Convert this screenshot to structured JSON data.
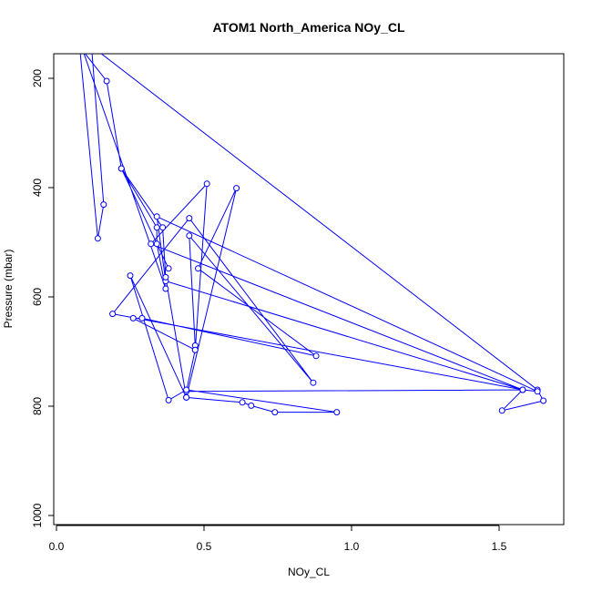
{
  "chart_data": {
    "type": "line",
    "title": "ATOM1 North_America NOy_CL",
    "xlabel": "NOy_CL",
    "ylabel": "Pressure (mbar)",
    "xlim": [
      0.0,
      1.7
    ],
    "ylim": [
      1000,
      150
    ],
    "y_reversed": true,
    "x_ticks": [
      "0.0",
      "0.5",
      "1.0",
      "1.5"
    ],
    "x_tick_values": [
      0.0,
      0.5,
      1.0,
      1.5
    ],
    "y_ticks": [
      "200",
      "400",
      "600",
      "800",
      "1000"
    ],
    "y_tick_values": [
      200,
      400,
      600,
      800,
      1000
    ],
    "grid": false,
    "line_color": "#0000ff",
    "marker": "open-circle",
    "series": [
      {
        "x": [
          0.08,
          0.14,
          0.16,
          0.12,
          0.14,
          1.63,
          1.65,
          1.51,
          1.58,
          0.37,
          0.34,
          1.63,
          1.58,
          0.32,
          0.51,
          0.47,
          0.47,
          0.45,
          0.87,
          0.45,
          0.19,
          1.58,
          0.44,
          0.47,
          0.26,
          0.29,
          0.88,
          0.48,
          0.61,
          0.44,
          0.25,
          0.38,
          0.44,
          0.95,
          0.74,
          0.66,
          0.63,
          0.44,
          0.37,
          0.36,
          0.22,
          0.17,
          0.09,
          0.37,
          0.34,
          0.34,
          0.22,
          0.38
        ],
        "y": [
          150,
          493,
          431,
          150,
          150,
          770,
          790,
          808,
          770,
          571,
          453,
          773,
          770,
          503,
          393,
          697,
          689,
          488,
          757,
          456,
          631,
          770,
          773,
          697,
          639,
          639,
          708,
          548,
          401,
          784,
          561,
          789,
          770,
          811,
          811,
          799,
          793,
          784,
          564,
          473,
          365,
          205,
          150,
          585,
          503,
          473,
          365,
          548
        ]
      }
    ]
  }
}
